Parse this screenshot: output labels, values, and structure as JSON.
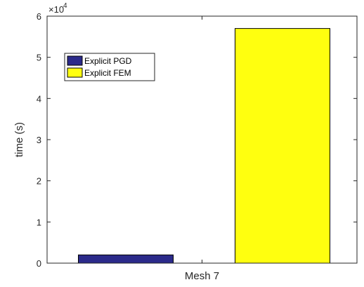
{
  "chart_data": {
    "type": "bar",
    "categories": [
      "Mesh 7"
    ],
    "series": [
      {
        "name": "Explicit PGD",
        "values": [
          2000
        ],
        "color": "#2b2a8a"
      },
      {
        "name": "Explicit FEM",
        "values": [
          57000
        ],
        "color": "#ffff0f"
      }
    ],
    "xlabel": "",
    "ylabel": "time (s)",
    "ylim": [
      0,
      60000
    ],
    "yticks": [
      0,
      1,
      2,
      3,
      4,
      5,
      6
    ],
    "ytick_labels": [
      "0",
      "1",
      "2",
      "3",
      "4",
      "5",
      "6"
    ],
    "y_multiplier": "×10",
    "y_multiplier_exponent": "4",
    "grid": false,
    "legend_position": "top-left"
  }
}
